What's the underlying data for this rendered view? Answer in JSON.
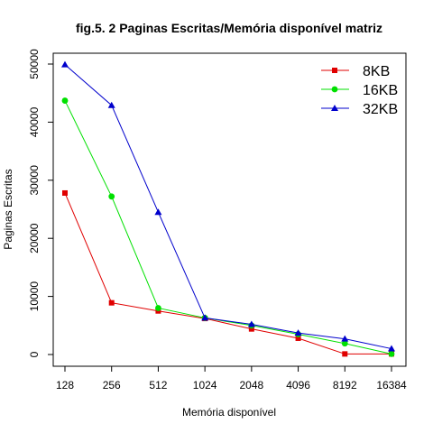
{
  "chart_data": {
    "type": "line",
    "title": "fig.5. 2 Paginas Escritas/Memória disponível  matriz",
    "xlabel": "Memória disponível",
    "ylabel": "Paginas Escritas",
    "categories": [
      "128",
      "256",
      "512",
      "1024",
      "2048",
      "4096",
      "8192",
      "16384"
    ],
    "ylim": [
      0,
      50000
    ],
    "yticks": [
      0,
      10000,
      20000,
      30000,
      40000,
      50000
    ],
    "ytick_labels": [
      "0",
      "10000",
      "20000",
      "30000",
      "40000",
      "50000"
    ],
    "grid": false,
    "legend_position": "top-right",
    "series": [
      {
        "name": "8KB",
        "color": "#e00000",
        "marker": "square",
        "values": [
          27800,
          8900,
          7500,
          6200,
          4400,
          2800,
          100,
          100
        ]
      },
      {
        "name": "16KB",
        "color": "#00e000",
        "marker": "circle",
        "values": [
          43700,
          27200,
          8000,
          6300,
          5000,
          3500,
          1900,
          100
        ]
      },
      {
        "name": "32KB",
        "color": "#0000cc",
        "marker": "triangle",
        "values": [
          49900,
          42900,
          24500,
          6300,
          5200,
          3700,
          2700,
          1000
        ]
      }
    ]
  }
}
